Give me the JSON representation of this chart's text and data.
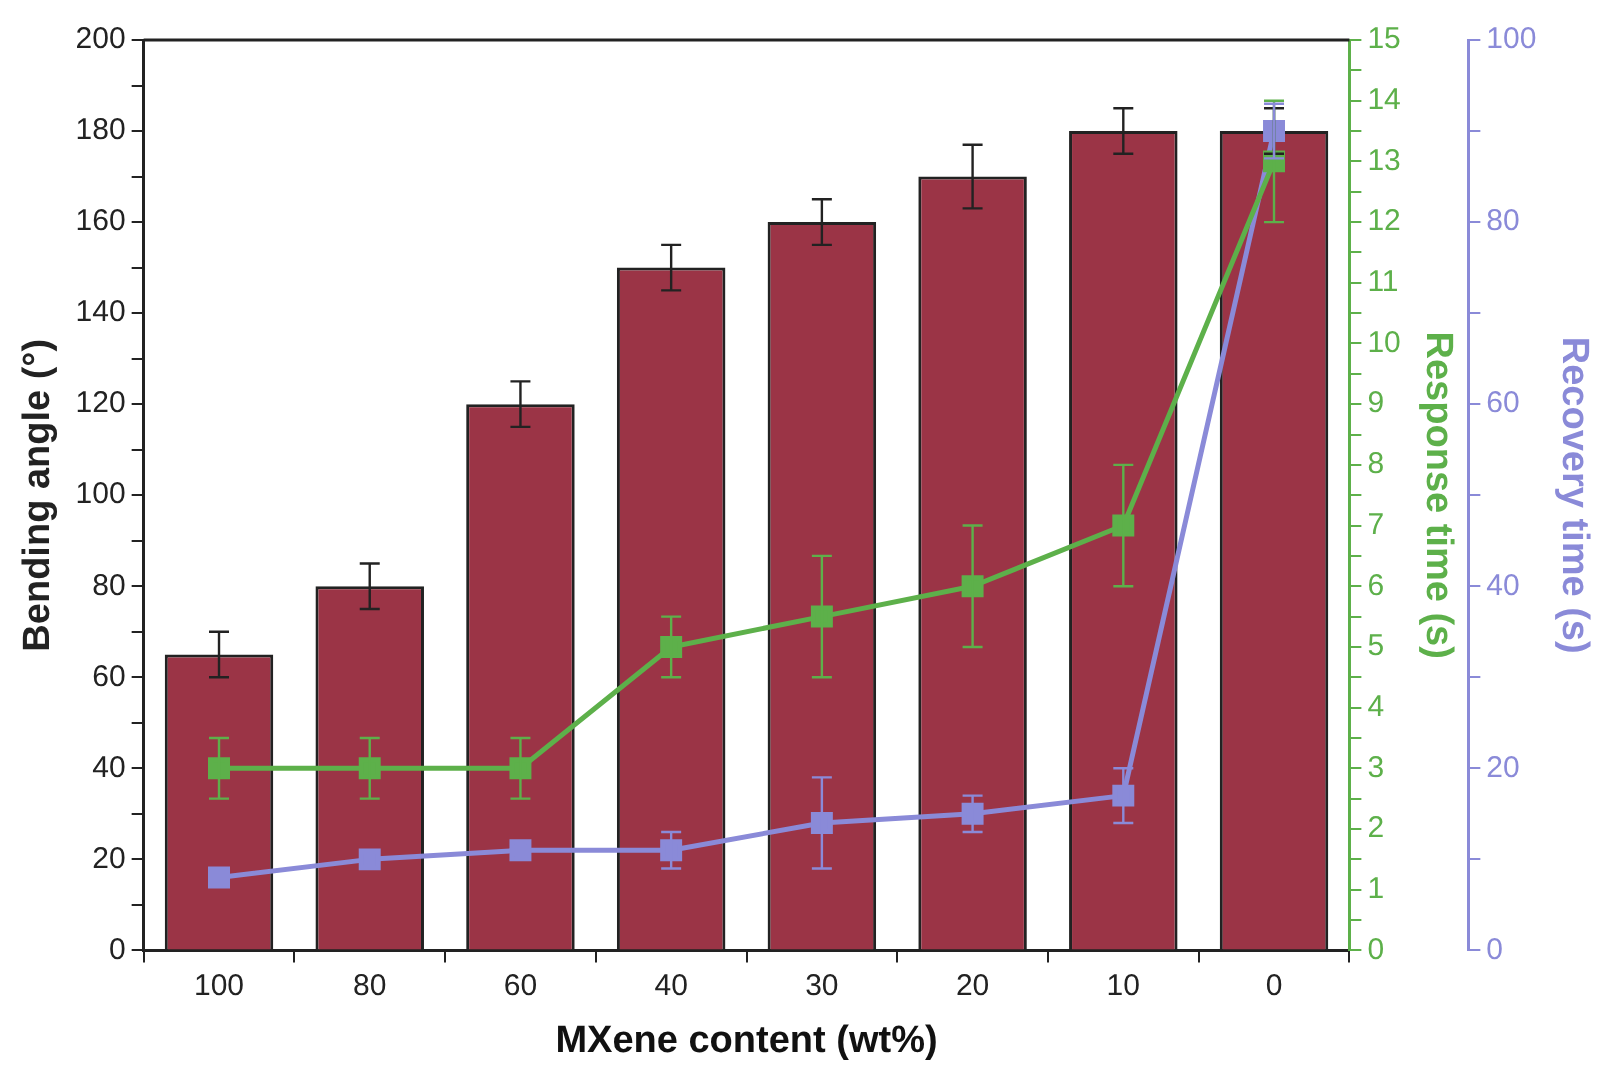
{
  "chart_data": {
    "type": "bar",
    "xlabel": "MXene content (wt%)",
    "ylabel": "Bending angle (°)",
    "y2label": "Response time (s)",
    "y3label": "Recovery time (s)",
    "categories": [
      "100",
      "80",
      "60",
      "40",
      "30",
      "20",
      "10",
      "0"
    ],
    "series": [
      {
        "color": "#9b3446",
        "values": [
          65,
          80,
          120,
          150,
          160,
          170,
          180,
          180
        ],
        "errors": [
          5,
          5,
          5,
          5,
          5,
          7,
          5,
          5
        ]
      },
      {
        "type": "line",
        "axis": "y2",
        "color": "#5db04a",
        "values": [
          3,
          3,
          3,
          5,
          5.5,
          6,
          7,
          13
        ],
        "errors": [
          0.5,
          0.5,
          0.5,
          0.5,
          1,
          1,
          1,
          1
        ]
      },
      {
        "type": "line",
        "axis": "y3",
        "color": "#8a8ad8",
        "values": [
          8,
          10,
          11,
          11,
          14,
          15,
          17,
          90
        ],
        "errors": [
          null,
          null,
          null,
          2,
          5,
          2,
          3,
          3
        ]
      }
    ],
    "ylim": [
      0,
      200
    ],
    "yticks": [
      0,
      {
        "value": 10,
        "label": null
      },
      20,
      {
        "value": 30,
        "label": null
      },
      40,
      {
        "value": 50,
        "label": null
      },
      60,
      {
        "value": 70,
        "label": null
      },
      80,
      {
        "value": 90,
        "label": null
      },
      100,
      {
        "value": 110,
        "label": null
      },
      120,
      {
        "value": 130,
        "label": null
      },
      140,
      {
        "value": 150,
        "label": null
      },
      160,
      {
        "value": 170,
        "label": null
      },
      180,
      {
        "value": 190,
        "label": null
      },
      200
    ],
    "y2lim": [
      0,
      15
    ],
    "y2ticks": [
      0,
      {
        "value": 0.5,
        "label": null
      },
      1,
      {
        "value": 1.5,
        "label": null
      },
      2,
      {
        "value": 2.5,
        "label": null
      },
      3,
      {
        "value": 3.5,
        "label": null
      },
      4,
      {
        "value": 4.5,
        "label": null
      },
      5,
      {
        "value": 5.5,
        "label": null
      },
      6,
      {
        "value": 6.5,
        "label": null
      },
      7,
      {
        "value": 7.5,
        "label": null
      },
      8,
      {
        "value": 8.5,
        "label": null
      },
      9,
      {
        "value": 9.5,
        "label": null
      },
      10,
      {
        "value": 10.5,
        "label": null
      },
      11,
      {
        "value": 11.5,
        "label": null
      },
      12,
      {
        "value": 12.5,
        "label": null
      },
      13,
      {
        "value": 13.5,
        "label": null
      },
      14,
      {
        "value": 14.5,
        "label": null
      },
      15
    ],
    "y3lim": [
      0,
      100
    ],
    "y3ticks": [
      0,
      {
        "value": 10,
        "label": null
      },
      20,
      {
        "value": 30,
        "label": null
      },
      40,
      {
        "value": 50,
        "label": null
      },
      60,
      {
        "value": 70,
        "label": null
      },
      80,
      {
        "value": 90,
        "label": null
      },
      100
    ],
    "grid": false,
    "legend": false,
    "marker": "square",
    "line_style": "solid"
  }
}
